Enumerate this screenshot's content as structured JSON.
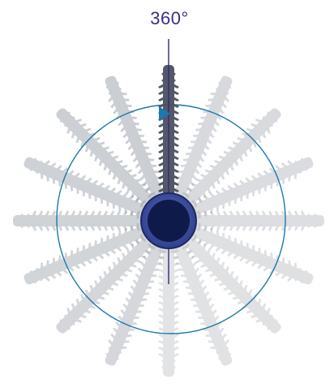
{
  "diagram": {
    "angle_label": "360°",
    "screw_count": 16,
    "colors": {
      "screw_ghost": "#9aa0a8",
      "screw_active": "#4b5060",
      "axis_line": "#2f2a7a",
      "rotation_circle": "#1c78ad",
      "arrow": "#1c78ad",
      "head_ring": "#3d4fa0",
      "head_core": "#0e1a4a",
      "label": "#3a2f86"
    }
  }
}
